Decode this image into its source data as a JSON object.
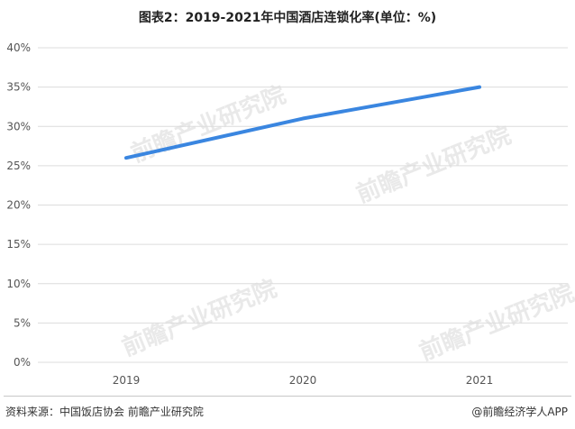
{
  "title": "图表2：2019-2021年中国酒店连锁化率(单位：%)",
  "chart_data": {
    "type": "line",
    "title": "图表2：2019-2021年中国酒店连锁化率(单位：%)",
    "categories": [
      "2019",
      "2020",
      "2021"
    ],
    "series": [
      {
        "values": [
          26,
          31,
          35
        ],
        "color": "#3a86e0"
      }
    ],
    "ylim": [
      0,
      40
    ],
    "yticks": [
      "0%",
      "5%",
      "10%",
      "15%",
      "20%",
      "25%",
      "30%",
      "35%",
      "40%"
    ],
    "grid": true,
    "xlabel": "",
    "ylabel": ""
  },
  "footer": {
    "source": "资料来源：中国饭店协会 前瞻产业研究院",
    "brand": "@前瞻经济学人APP"
  },
  "watermark": "前瞻产业研究院"
}
